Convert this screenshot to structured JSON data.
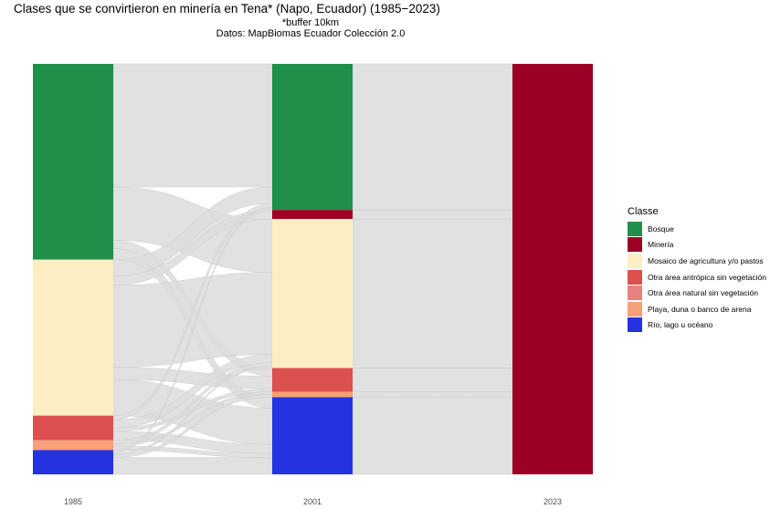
{
  "chart_data": {
    "type": "alluvial",
    "title": "Clases que se convirtieron en minería en Tena* (Napo, Ecuador) (1985−2023)",
    "subtitle": [
      "*buffer 10km",
      "Datos: MapBiomas Ecuador Colección 2.0"
    ],
    "x": [
      "1985",
      "2001",
      "2023"
    ],
    "legend_title": "Classe",
    "legend_position": "right",
    "classes": [
      {
        "name": "Bosque",
        "color": "#1f8f4a"
      },
      {
        "name": "Minería",
        "color": "#9b0025"
      },
      {
        "name": "Mosaico de agricultura y/o pastos",
        "color": "#fdeec3"
      },
      {
        "name": "Otra área antrópica sin vegetación",
        "color": "#dd5050"
      },
      {
        "name": "Otra área natural sin vegetación",
        "color": "#e88080"
      },
      {
        "name": "Playa, duna o banco de arena",
        "color": "#f7a07a"
      },
      {
        "name": "Río, lago u océano",
        "color": "#2432e0"
      }
    ],
    "stacks": {
      "1985": [
        {
          "class": "Bosque",
          "share": 0.477
        },
        {
          "class": "Mosaico de agricultura y/o pastos",
          "share": 0.38
        },
        {
          "class": "Otra área antrópica sin vegetación",
          "share": 0.06
        },
        {
          "class": "Playa, duna o banco de arena",
          "share": 0.024
        },
        {
          "class": "Río, lago u océano",
          "share": 0.059
        }
      ],
      "2001": [
        {
          "class": "Bosque",
          "share": 0.356
        },
        {
          "class": "Minería",
          "share": 0.022
        },
        {
          "class": "Mosaico de agricultura y/o pastos",
          "share": 0.363
        },
        {
          "class": "Otra área antrópica sin vegetación",
          "share": 0.058
        },
        {
          "class": "Playa, duna o banco de arena",
          "share": 0.013
        },
        {
          "class": "Río, lago u océano",
          "share": 0.188
        }
      ],
      "2023": [
        {
          "class": "Minería",
          "share": 1.0
        }
      ]
    },
    "flows_1985_2001": [
      {
        "from": "Bosque",
        "to": "Bosque",
        "share": 0.3
      },
      {
        "from": "Bosque",
        "to": "Mosaico de agricultura y/o pastos",
        "share": 0.13
      },
      {
        "from": "Bosque",
        "to": "Otra área antrópica sin vegetación",
        "share": 0.02
      },
      {
        "from": "Bosque",
        "to": "Río, lago u océano",
        "share": 0.027
      },
      {
        "from": "Mosaico de agricultura y/o pastos",
        "to": "Bosque",
        "share": 0.04
      },
      {
        "from": "Mosaico de agricultura y/o pastos",
        "to": "Minería",
        "share": 0.022
      },
      {
        "from": "Mosaico de agricultura y/o pastos",
        "to": "Mosaico de agricultura y/o pastos",
        "share": 0.2
      },
      {
        "from": "Mosaico de agricultura y/o pastos",
        "to": "Otra área antrópica sin vegetación",
        "share": 0.03
      },
      {
        "from": "Mosaico de agricultura y/o pastos",
        "to": "Río, lago u océano",
        "share": 0.088
      },
      {
        "from": "Otra área antrópica sin vegetación",
        "to": "Bosque",
        "share": 0.01
      },
      {
        "from": "Otra área antrópica sin vegetación",
        "to": "Mosaico de agricultura y/o pastos",
        "share": 0.02
      },
      {
        "from": "Otra área antrópica sin vegetación",
        "to": "Otra área antrópica sin vegetación",
        "share": 0.008
      },
      {
        "from": "Otra área antrópica sin vegetación",
        "to": "Río, lago u océano",
        "share": 0.022
      },
      {
        "from": "Playa, duna o banco de arena",
        "to": "Mosaico de agricultura y/o pastos",
        "share": 0.008
      },
      {
        "from": "Playa, duna o banco de arena",
        "to": "Playa, duna o banco de arena",
        "share": 0.006
      },
      {
        "from": "Playa, duna o banco de arena",
        "to": "Río, lago u océano",
        "share": 0.01
      },
      {
        "from": "Río, lago u océano",
        "to": "Bosque",
        "share": 0.006
      },
      {
        "from": "Río, lago u océano",
        "to": "Mosaico de agricultura y/o pastos",
        "share": 0.005
      },
      {
        "from": "Río, lago u océano",
        "to": "Playa, duna o banco de arena",
        "share": 0.007
      },
      {
        "from": "Río, lago u océano",
        "to": "Río, lago u océano",
        "share": 0.041
      }
    ],
    "flows_2001_2023": [
      {
        "from": "Bosque",
        "to": "Minería",
        "share": 0.356
      },
      {
        "from": "Minería",
        "to": "Minería",
        "share": 0.022
      },
      {
        "from": "Mosaico de agricultura y/o pastos",
        "to": "Minería",
        "share": 0.363
      },
      {
        "from": "Otra área antrópica sin vegetación",
        "to": "Minería",
        "share": 0.058
      },
      {
        "from": "Playa, duna o banco de arena",
        "to": "Minería",
        "share": 0.013
      },
      {
        "from": "Río, lago u océano",
        "to": "Minería",
        "share": 0.188
      }
    ],
    "flow_color": "#dcdcdc",
    "grid": false
  }
}
